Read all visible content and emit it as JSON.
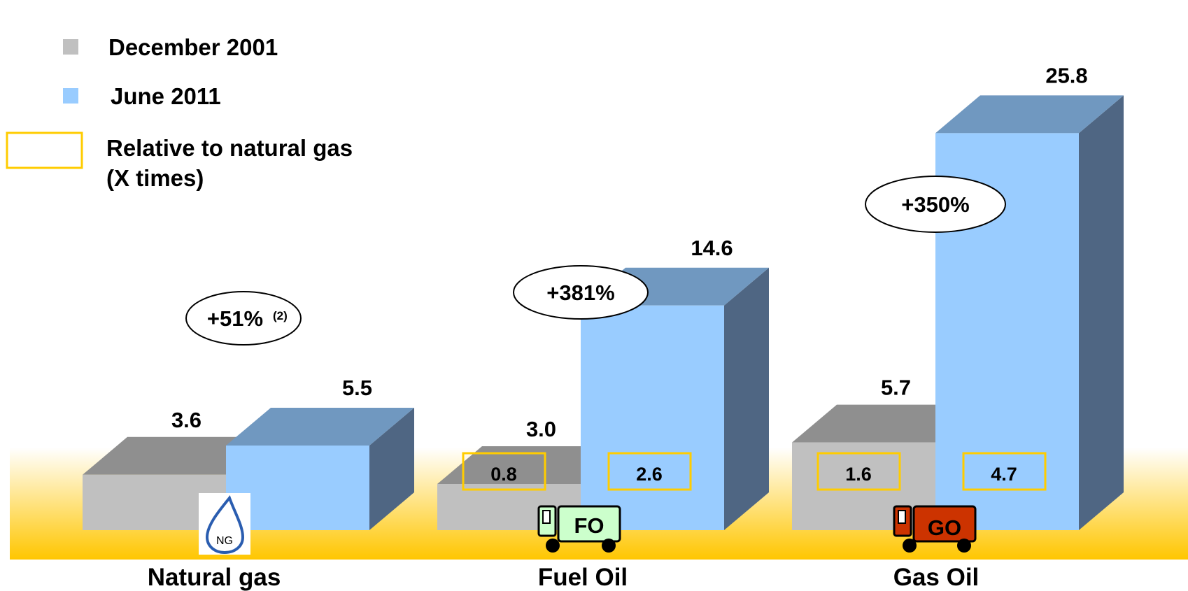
{
  "chart_data": {
    "type": "bar",
    "categories": [
      "Natural gas",
      "Fuel Oil",
      "Gas Oil"
    ],
    "series": [
      {
        "name": "December 2001",
        "values": [
          3.6,
          3.0,
          5.7
        ]
      },
      {
        "name": "June 2011",
        "values": [
          5.5,
          14.6,
          25.8
        ]
      }
    ],
    "value_labels": [
      [
        "3.6",
        "3.0",
        "5.7"
      ],
      [
        "5.5",
        "14.6",
        "25.8"
      ]
    ],
    "relative_to_natural_gas": {
      "December 2001": [
        null,
        "0.8",
        "1.6"
      ],
      "June 2011": [
        null,
        "2.6",
        "4.7"
      ]
    },
    "change_annotations": [
      {
        "category": "Natural gas",
        "text": "+51%",
        "footnote": "(2)"
      },
      {
        "category": "Fuel Oil",
        "text": "+381%",
        "footnote": ""
      },
      {
        "category": "Gas Oil",
        "text": "+350%",
        "footnote": ""
      }
    ],
    "legend": {
      "placement": "top-left",
      "items": [
        "December 2001",
        "June 2011"
      ],
      "box_label_line1": "Relative to natural gas",
      "box_label_line2": "(X times)"
    },
    "icons": [
      {
        "category": "Natural gas",
        "name": "natural-gas-drop-icon",
        "text": "NG"
      },
      {
        "category": "Fuel Oil",
        "name": "fuel-oil-truck-icon",
        "text": "FO"
      },
      {
        "category": "Gas Oil",
        "name": "gas-oil-truck-icon",
        "text": "GO"
      }
    ],
    "grid": false,
    "colors": {
      "dec_front": "#c0c0c0",
      "dec_top": "#8f8f8f",
      "jun_front": "#99ccff",
      "jun_top": "#7098c0",
      "jun_side": "#4f6683",
      "relative_box_border": "#ffcc00",
      "floor_gradient_top": "#ffffff",
      "floor_gradient_bottom": "#ffc600",
      "fuel_oil_truck": "#ccffcc",
      "gas_oil_truck": "#cc3300"
    }
  }
}
